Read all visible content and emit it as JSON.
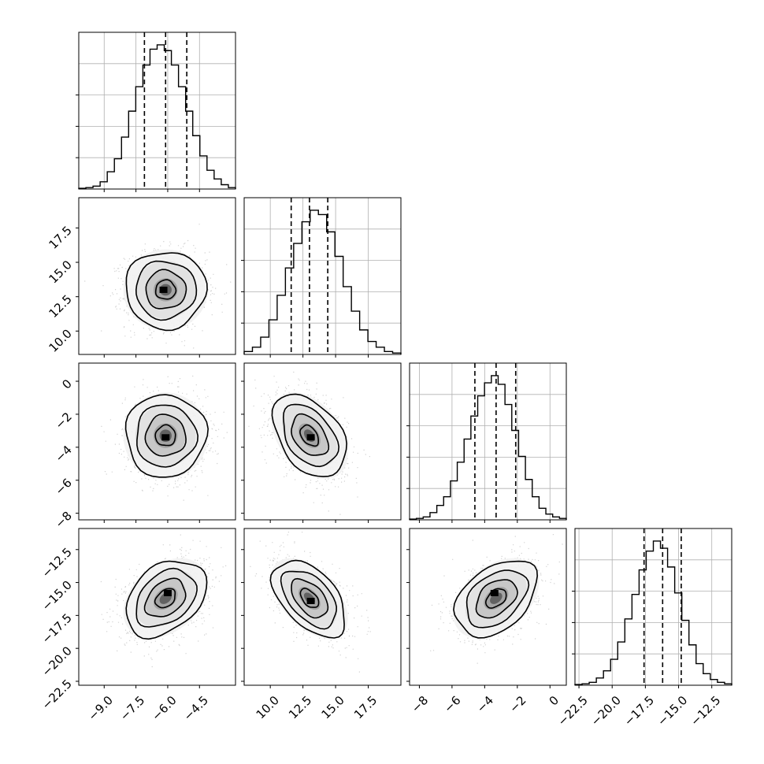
{
  "chart_data": {
    "type": "corner",
    "parameters": [
      {
        "ticks": [
          -9.0,
          -7.5,
          -6.0,
          -4.5
        ],
        "tick_labels": [
          "−9.0",
          "−7.5",
          "−6.0",
          "−4.5"
        ],
        "range": [
          -10.2,
          -2.8
        ],
        "quantiles": [
          -7.1,
          -6.1,
          -5.1
        ],
        "hist": [
          0.005,
          0.01,
          0.02,
          0.05,
          0.12,
          0.21,
          0.36,
          0.54,
          0.71,
          0.86,
          0.97,
          1.0,
          0.96,
          0.86,
          0.71,
          0.54,
          0.37,
          0.23,
          0.13,
          0.07,
          0.03,
          0.01
        ]
      },
      {
        "ticks": [
          10.0,
          12.5,
          15.0,
          17.5
        ],
        "tick_labels": [
          "10.0",
          "12.5",
          "15.0",
          "17.5"
        ],
        "range": [
          8.0,
          20.0
        ],
        "quantiles": [
          11.6,
          13.0,
          14.4
        ],
        "hist": [
          0.02,
          0.05,
          0.12,
          0.24,
          0.41,
          0.6,
          0.77,
          0.92,
          1.0,
          0.97,
          0.85,
          0.68,
          0.47,
          0.3,
          0.17,
          0.09,
          0.05,
          0.02,
          0.01
        ]
      },
      {
        "ticks": [
          -8,
          -6,
          -4,
          -2,
          0
        ],
        "tick_labels": [
          "−8",
          "−6",
          "−4",
          "−2",
          "0"
        ],
        "range": [
          -8.6,
          1.0
        ],
        "quantiles": [
          -4.6,
          -3.3,
          -2.1
        ],
        "hist": [
          0.005,
          0.01,
          0.02,
          0.05,
          0.1,
          0.16,
          0.27,
          0.4,
          0.56,
          0.72,
          0.86,
          0.95,
          1.0,
          0.94,
          0.8,
          0.62,
          0.44,
          0.28,
          0.16,
          0.08,
          0.04,
          0.02,
          0.01
        ]
      },
      {
        "ticks": [
          -22.5,
          -20.0,
          -17.5,
          -15.0,
          -12.5
        ],
        "tick_labels": [
          "−22.5",
          "−20.0",
          "−17.5",
          "−15.0",
          "−12.5"
        ],
        "range": [
          -22.8,
          -11.0
        ],
        "quantiles": [
          -17.6,
          -16.2,
          -14.8
        ],
        "hist": [
          0.005,
          0.01,
          0.02,
          0.05,
          0.1,
          0.18,
          0.3,
          0.46,
          0.63,
          0.8,
          0.93,
          1.0,
          0.95,
          0.82,
          0.64,
          0.45,
          0.28,
          0.15,
          0.08,
          0.04,
          0.02,
          0.01
        ]
      }
    ],
    "y_ranges": {
      "1": [
        8.3,
        19.7
      ],
      "2": [
        -8.4,
        1.1
      ],
      "3": [
        -22.8,
        -10.9
      ]
    },
    "pairs": [
      {
        "row": 1,
        "col": 0,
        "mean": [
          -6.1,
          13.0
        ],
        "sd": [
          0.95,
          1.4
        ],
        "rho": 0.0,
        "peak": [
          -6.2,
          13.0
        ]
      },
      {
        "row": 2,
        "col": 0,
        "mean": [
          -6.1,
          -3.3
        ],
        "sd": [
          0.95,
          1.25
        ],
        "rho": 0.0,
        "peak": [
          -6.1,
          -3.4
        ]
      },
      {
        "row": 2,
        "col": 1,
        "mean": [
          13.0,
          -3.3
        ],
        "sd": [
          1.4,
          1.25
        ],
        "rho": -0.4,
        "peak": [
          13.1,
          -3.4
        ]
      },
      {
        "row": 3,
        "col": 0,
        "mean": [
          -6.1,
          -16.2
        ],
        "sd": [
          0.95,
          1.45
        ],
        "rho": 0.35,
        "peak": [
          -6.0,
          -15.8
        ]
      },
      {
        "row": 3,
        "col": 1,
        "mean": [
          13.0,
          -16.2
        ],
        "sd": [
          1.4,
          1.45
        ],
        "rho": -0.5,
        "peak": [
          13.1,
          -16.4
        ]
      },
      {
        "row": 3,
        "col": 2,
        "mean": [
          -3.3,
          -16.2
        ],
        "sd": [
          1.25,
          1.45
        ],
        "rho": 0.4,
        "peak": [
          -3.4,
          -15.8
        ]
      }
    ],
    "contour_levels_sigma": [
      0.5,
      1.0,
      1.5,
      2.0
    ],
    "grid": true,
    "colors": {
      "line": "#000000",
      "scatter": "#9a9a9a",
      "grid": "#b0b0b0"
    }
  }
}
